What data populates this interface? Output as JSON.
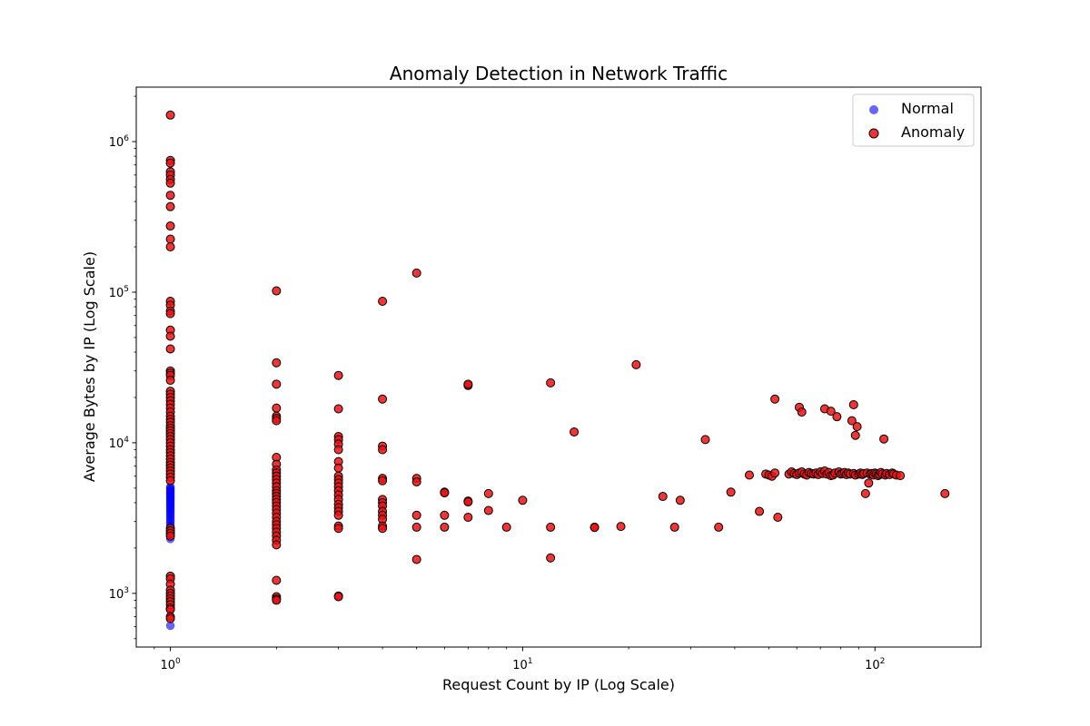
{
  "chart_data": {
    "type": "scatter",
    "title": "Anomaly Detection in Network Traffic",
    "xlabel": "Request Count by IP (Log Scale)",
    "ylabel": "Average Bytes by IP (Log Scale)",
    "x_scale": "log",
    "y_scale": "log",
    "xlim": [
      0.8,
      200
    ],
    "ylim": [
      440,
      2300000
    ],
    "x_ticks": [
      {
        "value": 1,
        "base": "10",
        "exp": "0"
      },
      {
        "value": 10,
        "base": "10",
        "exp": "1"
      },
      {
        "value": 100,
        "base": "10",
        "exp": "2"
      }
    ],
    "y_ticks": [
      {
        "value": 1000,
        "base": "10",
        "exp": "3"
      },
      {
        "value": 10000,
        "base": "10",
        "exp": "4"
      },
      {
        "value": 100000,
        "base": "10",
        "exp": "5"
      },
      {
        "value": 1000000,
        "base": "10",
        "exp": "6"
      }
    ],
    "grid": false,
    "legend_position": "top-right",
    "series": [
      {
        "name": "Normal",
        "color": "#0000ff",
        "points": [
          [
            1,
            2300
          ],
          [
            1,
            2400
          ],
          [
            1,
            2500
          ],
          [
            1,
            2600
          ],
          [
            1,
            2700
          ],
          [
            1,
            2800
          ],
          [
            1,
            2900
          ],
          [
            1,
            3000
          ],
          [
            1,
            3100
          ],
          [
            1,
            3200
          ],
          [
            1,
            3300
          ],
          [
            1,
            3400
          ],
          [
            1,
            3500
          ],
          [
            1,
            3600
          ],
          [
            1,
            3700
          ],
          [
            1,
            3800
          ],
          [
            1,
            3900
          ],
          [
            1,
            4000
          ],
          [
            1,
            4100
          ],
          [
            1,
            4200
          ],
          [
            1,
            4300
          ],
          [
            1,
            4400
          ],
          [
            1,
            4500
          ],
          [
            1,
            4600
          ],
          [
            1,
            4700
          ],
          [
            1,
            4800
          ],
          [
            1,
            4900
          ],
          [
            1,
            5000
          ],
          [
            1,
            5100
          ],
          [
            1,
            610
          ]
        ]
      },
      {
        "name": "Anomaly",
        "color": "#ee1111",
        "points": [
          [
            1,
            1500000
          ],
          [
            1,
            750000
          ],
          [
            1,
            720000
          ],
          [
            1,
            630000
          ],
          [
            1,
            600000
          ],
          [
            1,
            560000
          ],
          [
            1,
            530000
          ],
          [
            1,
            440000
          ],
          [
            1,
            370000
          ],
          [
            1,
            275000
          ],
          [
            1,
            225000
          ],
          [
            1,
            200000
          ],
          [
            1,
            87000
          ],
          [
            1,
            82000
          ],
          [
            1,
            75000
          ],
          [
            1,
            72000
          ],
          [
            1,
            56000
          ],
          [
            1,
            51000
          ],
          [
            1,
            42000
          ],
          [
            1,
            30000
          ],
          [
            1,
            29000
          ],
          [
            1,
            28000
          ],
          [
            1,
            26000
          ],
          [
            1,
            22000
          ],
          [
            1,
            21000
          ],
          [
            1,
            20000
          ],
          [
            1,
            19000
          ],
          [
            1,
            18000
          ],
          [
            1,
            17000
          ],
          [
            1,
            16000
          ],
          [
            1,
            15000
          ],
          [
            1,
            14300
          ],
          [
            1,
            13700
          ],
          [
            1,
            13000
          ],
          [
            1,
            12500
          ],
          [
            1,
            12000
          ],
          [
            1,
            11500
          ],
          [
            1,
            11000
          ],
          [
            1,
            10500
          ],
          [
            1,
            10000
          ],
          [
            1,
            9500
          ],
          [
            1,
            9000
          ],
          [
            1,
            8600
          ],
          [
            1,
            8200
          ],
          [
            1,
            7800
          ],
          [
            1,
            7400
          ],
          [
            1,
            7100
          ],
          [
            1,
            6800
          ],
          [
            1,
            6500
          ],
          [
            1,
            6200
          ],
          [
            1,
            5900
          ],
          [
            1,
            5600
          ],
          [
            1,
            2700
          ],
          [
            1,
            2600
          ],
          [
            1,
            2500
          ],
          [
            1,
            2400
          ],
          [
            1,
            1300
          ],
          [
            1,
            1250
          ],
          [
            1,
            1150
          ],
          [
            1,
            1050
          ],
          [
            1,
            1000
          ],
          [
            1,
            960
          ],
          [
            1,
            920
          ],
          [
            1,
            880
          ],
          [
            1,
            840
          ],
          [
            1,
            800
          ],
          [
            1,
            780
          ],
          [
            1,
            700
          ],
          [
            1,
            680
          ],
          [
            2,
            102000
          ],
          [
            2,
            34000
          ],
          [
            2,
            24500
          ],
          [
            2,
            17000
          ],
          [
            2,
            15000
          ],
          [
            2,
            14500
          ],
          [
            2,
            14000
          ],
          [
            2,
            8000
          ],
          [
            2,
            7200
          ],
          [
            2,
            6600
          ],
          [
            2,
            6300
          ],
          [
            2,
            6000
          ],
          [
            2,
            5700
          ],
          [
            2,
            5400
          ],
          [
            2,
            5100
          ],
          [
            2,
            4800
          ],
          [
            2,
            4600
          ],
          [
            2,
            4400
          ],
          [
            2,
            4200
          ],
          [
            2,
            4000
          ],
          [
            2,
            3800
          ],
          [
            2,
            3600
          ],
          [
            2,
            3400
          ],
          [
            2,
            3200
          ],
          [
            2,
            3000
          ],
          [
            2,
            2850
          ],
          [
            2,
            2700
          ],
          [
            2,
            2550
          ],
          [
            2,
            2400
          ],
          [
            2,
            2250
          ],
          [
            2,
            2100
          ],
          [
            2,
            1220
          ],
          [
            2,
            950
          ],
          [
            2,
            920
          ],
          [
            2,
            900
          ],
          [
            3,
            28000
          ],
          [
            3,
            16800
          ],
          [
            3,
            11000
          ],
          [
            3,
            10500
          ],
          [
            3,
            9800
          ],
          [
            3,
            9000
          ],
          [
            3,
            7500
          ],
          [
            3,
            6800
          ],
          [
            3,
            6000
          ],
          [
            3,
            5700
          ],
          [
            3,
            5400
          ],
          [
            3,
            5100
          ],
          [
            3,
            4800
          ],
          [
            3,
            4500
          ],
          [
            3,
            4200
          ],
          [
            3,
            3900
          ],
          [
            3,
            3700
          ],
          [
            3,
            3500
          ],
          [
            3,
            3300
          ],
          [
            3,
            2800
          ],
          [
            3,
            2700
          ],
          [
            3,
            960
          ],
          [
            3,
            950
          ],
          [
            4,
            87000
          ],
          [
            4,
            19500
          ],
          [
            4,
            9500
          ],
          [
            4,
            9000
          ],
          [
            4,
            5800
          ],
          [
            4,
            5600
          ],
          [
            4,
            4200
          ],
          [
            4,
            4000
          ],
          [
            4,
            3800
          ],
          [
            4,
            3500
          ],
          [
            4,
            3300
          ],
          [
            4,
            3100
          ],
          [
            4,
            2800
          ],
          [
            4,
            2700
          ],
          [
            5,
            134000
          ],
          [
            5,
            5800
          ],
          [
            5,
            5500
          ],
          [
            5,
            3300
          ],
          [
            5,
            2750
          ],
          [
            5,
            1680
          ],
          [
            6,
            4700
          ],
          [
            6,
            4650
          ],
          [
            6,
            3300
          ],
          [
            6,
            2750
          ],
          [
            7,
            24000
          ],
          [
            7,
            24500
          ],
          [
            7,
            4100
          ],
          [
            7,
            4050
          ],
          [
            7,
            3200
          ],
          [
            8,
            4600
          ],
          [
            8,
            3550
          ],
          [
            9,
            2750
          ],
          [
            10,
            4150
          ],
          [
            12,
            25000
          ],
          [
            12,
            2750
          ],
          [
            12,
            1720
          ],
          [
            14,
            11800
          ],
          [
            16,
            2750
          ],
          [
            16,
            2740
          ],
          [
            19,
            2780
          ],
          [
            21,
            33000
          ],
          [
            25,
            4400
          ],
          [
            27,
            2750
          ],
          [
            28,
            4150
          ],
          [
            33,
            10500
          ],
          [
            36,
            2750
          ],
          [
            39,
            4700
          ],
          [
            44,
            6100
          ],
          [
            47,
            3500
          ],
          [
            49,
            6200
          ],
          [
            50,
            6100
          ],
          [
            51,
            6000
          ],
          [
            52,
            6300
          ],
          [
            52,
            19500
          ],
          [
            53,
            3200
          ],
          [
            57,
            6200
          ],
          [
            58,
            6400
          ],
          [
            59,
            6250
          ],
          [
            60,
            6150
          ],
          [
            61,
            6300
          ],
          [
            61,
            17200
          ],
          [
            62,
            6400
          ],
          [
            62,
            16000
          ],
          [
            63,
            6200
          ],
          [
            64,
            6100
          ],
          [
            65,
            6350
          ],
          [
            66,
            6250
          ],
          [
            67,
            6200
          ],
          [
            68,
            6300
          ],
          [
            69,
            6150
          ],
          [
            70,
            6400
          ],
          [
            71,
            6250
          ],
          [
            72,
            16800
          ],
          [
            72,
            6500
          ],
          [
            73,
            6200
          ],
          [
            74,
            6350
          ],
          [
            75,
            16200
          ],
          [
            75,
            6050
          ],
          [
            76,
            6100
          ],
          [
            77,
            6300
          ],
          [
            78,
            14900
          ],
          [
            79,
            6400
          ],
          [
            80,
            6200
          ],
          [
            81,
            6250
          ],
          [
            82,
            6350
          ],
          [
            83,
            6150
          ],
          [
            84,
            6300
          ],
          [
            85,
            6200
          ],
          [
            86,
            14000
          ],
          [
            87,
            6250
          ],
          [
            87,
            17900
          ],
          [
            88,
            6100
          ],
          [
            88,
            11200
          ],
          [
            89,
            12800
          ],
          [
            90,
            6200
          ],
          [
            91,
            6300
          ],
          [
            92,
            6150
          ],
          [
            93,
            6250
          ],
          [
            94,
            4600
          ],
          [
            95,
            6300
          ],
          [
            96,
            5400
          ],
          [
            97,
            6200
          ],
          [
            98,
            6250
          ],
          [
            99,
            6100
          ],
          [
            100,
            6300
          ],
          [
            101,
            6200
          ],
          [
            102,
            6050
          ],
          [
            103,
            6150
          ],
          [
            104,
            6350
          ],
          [
            105,
            6200
          ],
          [
            106,
            10600
          ],
          [
            107,
            6100
          ],
          [
            108,
            6250
          ],
          [
            110,
            6150
          ],
          [
            112,
            6300
          ],
          [
            113,
            6200
          ],
          [
            115,
            6100
          ],
          [
            118,
            6050
          ],
          [
            158,
            4600
          ]
        ]
      }
    ]
  }
}
